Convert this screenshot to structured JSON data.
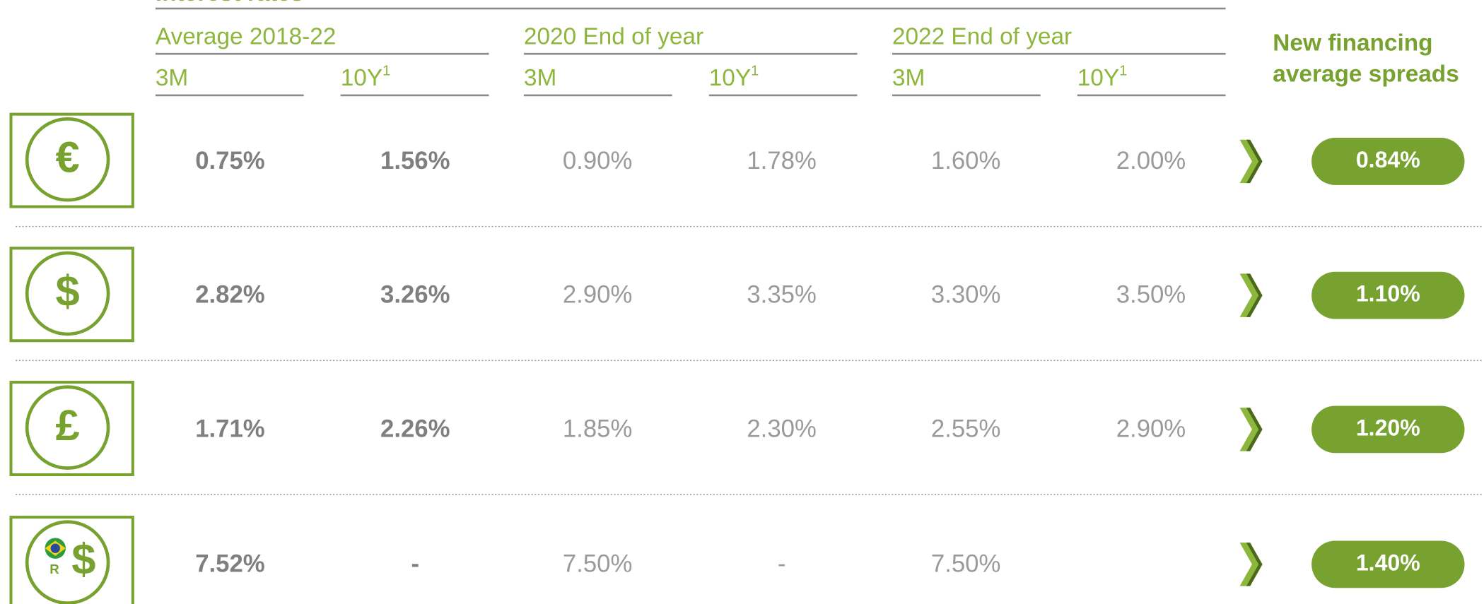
{
  "header": {
    "title": "Interest rates",
    "groups": [
      "Average 2018-22",
      "2020 End of year",
      "2022 End of year"
    ],
    "subheaders": [
      {
        "label": "3M"
      },
      {
        "label": "10Y",
        "note": "1"
      },
      {
        "label": "3M"
      },
      {
        "label": "10Y",
        "note": "1"
      },
      {
        "label": "3M"
      },
      {
        "label": "10Y",
        "note": "1"
      }
    ],
    "spread_header": [
      "New financing",
      "average spreads"
    ]
  },
  "rows": [
    {
      "icon": "€",
      "values": [
        "0.75%",
        "1.56%",
        "0.90%",
        "1.78%",
        "1.60%",
        "2.00%"
      ],
      "spread": "0.84%"
    },
    {
      "icon": "$",
      "values": [
        "2.82%",
        "3.26%",
        "2.90%",
        "3.35%",
        "3.30%",
        "3.50%"
      ],
      "spread": "1.10%"
    },
    {
      "icon": "£",
      "values": [
        "1.71%",
        "2.26%",
        "1.85%",
        "2.30%",
        "2.55%",
        "2.90%"
      ],
      "spread": "1.20%"
    },
    {
      "icon": "$",
      "icon_badge": "R",
      "values": [
        "7.52%",
        "-",
        "7.50%",
        "-",
        "7.50%",
        null
      ],
      "spread": "1.40%"
    }
  ]
}
